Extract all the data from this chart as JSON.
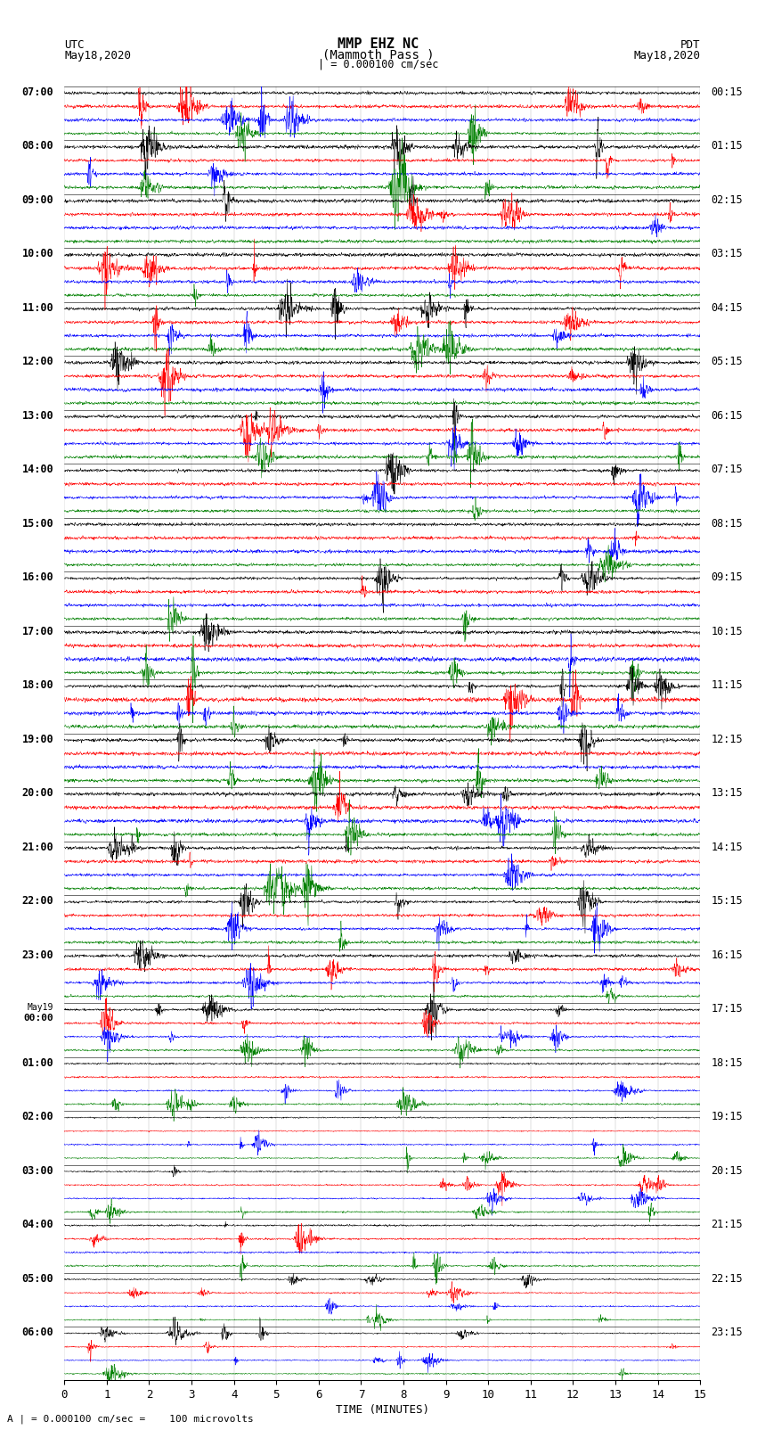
{
  "title_line1": "MMP EHZ NC",
  "title_line2": "(Mammoth Pass )",
  "scale_bar": "| = 0.000100 cm/sec",
  "left_header_line1": "UTC",
  "left_header_line2": "May18,2020",
  "right_header_line1": "PDT",
  "right_header_line2": "May18,2020",
  "xlabel": "TIME (MINUTES)",
  "bottom_note": "A | = 0.000100 cm/sec =    100 microvolts",
  "left_times": [
    "07:00",
    "08:00",
    "09:00",
    "10:00",
    "11:00",
    "12:00",
    "13:00",
    "14:00",
    "15:00",
    "16:00",
    "17:00",
    "18:00",
    "19:00",
    "20:00",
    "21:00",
    "22:00",
    "23:00",
    "May19",
    "00:00",
    "01:00",
    "02:00",
    "03:00",
    "04:00",
    "05:00",
    "06:00"
  ],
  "left_times_is_date": [
    false,
    false,
    false,
    false,
    false,
    false,
    false,
    false,
    false,
    false,
    false,
    false,
    false,
    false,
    false,
    false,
    false,
    true,
    false,
    false,
    false,
    false,
    false,
    false,
    false
  ],
  "right_times": [
    "00:15",
    "01:15",
    "02:15",
    "03:15",
    "04:15",
    "05:15",
    "06:15",
    "07:15",
    "08:15",
    "09:15",
    "10:15",
    "11:15",
    "12:15",
    "13:15",
    "14:15",
    "15:15",
    "16:15",
    "17:15",
    "18:15",
    "19:15",
    "20:15",
    "21:15",
    "22:15",
    "23:15"
  ],
  "colors": [
    "black",
    "red",
    "blue",
    "green"
  ],
  "n_rows": 24,
  "traces_per_row": 4,
  "x_ticks": [
    0,
    1,
    2,
    3,
    4,
    5,
    6,
    7,
    8,
    9,
    10,
    11,
    12,
    13,
    14,
    15
  ],
  "bg_color": "white",
  "plot_bg": "white",
  "figsize": [
    8.5,
    16.13
  ],
  "row_amplitudes": [
    0.42,
    0.42,
    0.42,
    0.42,
    0.42,
    0.42,
    0.42,
    0.42,
    0.42,
    0.42,
    0.45,
    0.48,
    0.45,
    0.45,
    0.4,
    0.38,
    0.35,
    0.28,
    0.22,
    0.18,
    0.2,
    0.22,
    0.18,
    0.16
  ],
  "row_activity": [
    0.8,
    0.8,
    0.8,
    0.85,
    0.85,
    0.85,
    0.9,
    0.9,
    0.85,
    0.8,
    0.75,
    0.7,
    0.65,
    0.6,
    0.5,
    0.4,
    0.35,
    0.25,
    0.2,
    0.18,
    0.22,
    0.25,
    0.18,
    0.15
  ]
}
